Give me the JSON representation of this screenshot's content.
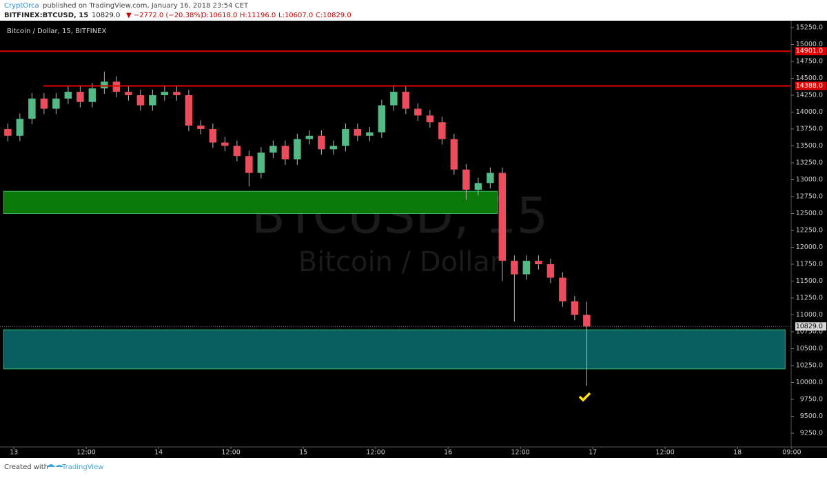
{
  "header": {
    "author": "CryptOrca",
    "published": "published on TradingView.com, January 16, 2018 23:54 CET",
    "symbol": "BITFINEX:BTCUSD, 15",
    "last": "10829.0",
    "change": "▼ −2772.0 (−20.38%)",
    "ohlc": [
      "O:10618.0",
      "H:11196.0",
      "L:10607.0",
      "C:10829.0"
    ]
  },
  "footer": {
    "created": "Created with",
    "brand": "TradingView"
  },
  "chart_data": {
    "type": "candlestick",
    "title": "Bitcoin / Dollar, 15, BITFINEX",
    "watermark": [
      "BTCUSD, 15",
      "Bitcoin / Dollar"
    ],
    "x": [
      -1,
      1,
      3,
      5,
      7,
      9,
      11,
      13,
      15,
      17,
      19,
      21,
      23,
      25,
      27,
      29,
      31,
      33,
      35,
      37,
      39,
      41,
      43,
      45,
      47,
      49,
      51,
      53,
      55,
      57,
      59,
      61,
      63,
      65,
      67,
      69,
      71,
      73,
      75,
      77,
      79,
      81,
      83,
      85,
      87,
      89,
      91,
      93,
      95
    ],
    "open": [
      13750,
      13650,
      13900,
      14200,
      14050,
      14200,
      14300,
      14150,
      14350,
      14450,
      14300,
      14250,
      14100,
      14250,
      14300,
      14250,
      13800,
      13750,
      13550,
      13500,
      13350,
      13100,
      13400,
      13500,
      13300,
      13600,
      13650,
      13450,
      13500,
      13750,
      13650,
      13700,
      14100,
      14300,
      14050,
      13950,
      13850,
      13600,
      13150,
      12850,
      12950,
      13100,
      11800,
      11600,
      11800,
      11750,
      11550,
      11200,
      11000
    ],
    "high": [
      13830,
      13980,
      14280,
      14280,
      14280,
      14380,
      14380,
      14430,
      14600,
      14530,
      14380,
      14330,
      14330,
      14380,
      14380,
      14330,
      13880,
      13830,
      13630,
      13580,
      13430,
      13480,
      13580,
      13580,
      13680,
      13730,
      13730,
      13580,
      13830,
      13830,
      13780,
      14180,
      14400,
      14380,
      14130,
      14030,
      13930,
      13680,
      13230,
      13030,
      13180,
      13180,
      11880,
      11880,
      11880,
      11830,
      11630,
      11280,
      11196
    ],
    "low": [
      13570,
      13570,
      13820,
      13970,
      13970,
      14120,
      14070,
      14070,
      14270,
      14220,
      14170,
      14020,
      14020,
      14170,
      14170,
      13720,
      13670,
      13470,
      13420,
      13270,
      12900,
      13020,
      13320,
      13220,
      13220,
      13520,
      13370,
      13370,
      13420,
      13570,
      13570,
      13620,
      14020,
      13970,
      13870,
      13770,
      13520,
      13070,
      12700,
      12770,
      12870,
      11500,
      10900,
      11520,
      11670,
      11470,
      11120,
      10920,
      9950
    ],
    "close": [
      13650,
      13900,
      14200,
      14050,
      14200,
      14300,
      14150,
      14350,
      14450,
      14300,
      14250,
      14100,
      14250,
      14300,
      14250,
      13800,
      13750,
      13550,
      13500,
      13350,
      13100,
      13400,
      13500,
      13300,
      13600,
      13650,
      13450,
      13500,
      13750,
      13650,
      13700,
      14100,
      14300,
      14050,
      13950,
      13850,
      13600,
      13150,
      12850,
      12950,
      13100,
      11800,
      11600,
      11800,
      11750,
      11550,
      11200,
      11000,
      10829
    ],
    "up_color": "#53b987",
    "down_color": "#eb4d5c",
    "xlim": [
      -2.3,
      128.9
    ],
    "xticks": [
      {
        "value": 0,
        "label": "13"
      },
      {
        "value": 12,
        "label": "12:00"
      },
      {
        "value": 24,
        "label": "14"
      },
      {
        "value": 36,
        "label": "12:00"
      },
      {
        "value": 48,
        "label": "15"
      },
      {
        "value": 60,
        "label": "12:00"
      },
      {
        "value": 72,
        "label": "16"
      },
      {
        "value": 84,
        "label": "12:00"
      },
      {
        "value": 96,
        "label": "17"
      },
      {
        "value": 108,
        "label": "12:00"
      },
      {
        "value": 120,
        "label": "18"
      },
      {
        "value": 129,
        "label": "09:00"
      }
    ],
    "ylim": [
      9046,
      15352
    ],
    "yticks": [
      {
        "value": 9250,
        "label": "9250.0"
      },
      {
        "value": 9500,
        "label": "9500.0"
      },
      {
        "value": 9750,
        "label": "9750.0"
      },
      {
        "value": 10000,
        "label": "10000.0"
      },
      {
        "value": 10250,
        "label": "10250.0"
      },
      {
        "value": 10500,
        "label": "10500.0"
      },
      {
        "value": 10750,
        "label": "10750.0"
      },
      {
        "value": 11000,
        "label": "11000.0"
      },
      {
        "value": 11250,
        "label": "11250.0"
      },
      {
        "value": 11500,
        "label": "11500.0"
      },
      {
        "value": 11750,
        "label": "11750.0"
      },
      {
        "value": 12000,
        "label": "12000.0"
      },
      {
        "value": 12250,
        "label": "12250.0"
      },
      {
        "value": 12500,
        "label": "12500.0"
      },
      {
        "value": 12750,
        "label": "12750.0"
      },
      {
        "value": 13000,
        "label": "13000.0"
      },
      {
        "value": 13250,
        "label": "13250.0"
      },
      {
        "value": 13500,
        "label": "13500.0"
      },
      {
        "value": 13750,
        "label": "13750.0"
      },
      {
        "value": 14000,
        "label": "14000.0"
      },
      {
        "value": 14250,
        "label": "14250.0"
      },
      {
        "value": 14500,
        "label": "14500.0"
      },
      {
        "value": 14750,
        "label": "14750.0"
      },
      {
        "value": 15000,
        "label": "15000.0"
      },
      {
        "value": 15250,
        "label": "15250.0"
      }
    ],
    "grid": false,
    "levels": [
      {
        "value": 14901,
        "label": "14901.0",
        "color": "#e00000",
        "start": -2.3
      },
      {
        "value": 14388,
        "label": "14388.0",
        "color": "#e00000",
        "start": 4.9
      }
    ],
    "zones": [
      {
        "from": 12500,
        "to": 12830,
        "x": [
          -1.7,
          80.2
        ],
        "color": "#0b7a0b"
      },
      {
        "from": 10200,
        "to": 10780,
        "x": [
          -1.7,
          127.9
        ],
        "color": "#07605f"
      }
    ],
    "last_price": {
      "value": 10829,
      "label": "10829.0"
    }
  }
}
